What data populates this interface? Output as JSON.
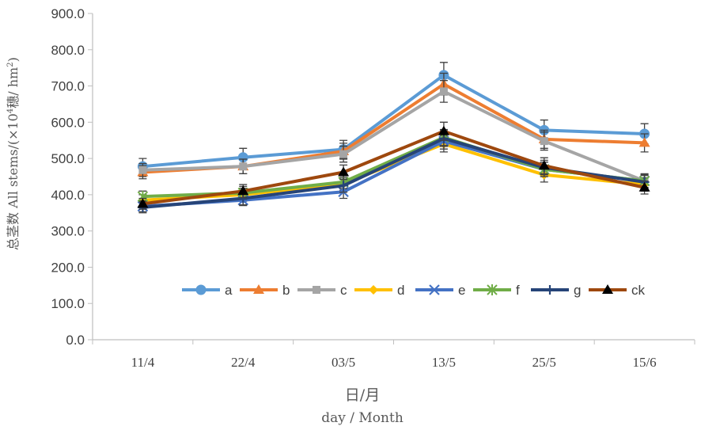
{
  "chart_data": {
    "type": "line",
    "categories": [
      "11/4",
      "22/4",
      "03/5",
      "13/5",
      "25/5",
      "15/6"
    ],
    "ylim": [
      0,
      900
    ],
    "yticks": [
      "0.0",
      "100.0",
      "200.0",
      "300.0",
      "400.0",
      "500.0",
      "600.0",
      "700.0",
      "800.0",
      "900.0"
    ],
    "ylabel": "总茎数 All stems/(×10⁴穗/hm²)",
    "ylabel_parts": {
      "cn": "总茎数",
      "en": " All stems/(×10",
      "sup1": "4",
      "mid": "穗/ hm",
      "sup2": "2",
      "end": ")"
    },
    "xlabel_cn": "日/月",
    "xlabel_en": "day  /  Month",
    "grid": false,
    "legend_position": "inside-lower-right",
    "series": [
      {
        "name": "a",
        "color": "#5B9BD5",
        "marker": "circle",
        "values": [
          478,
          503,
          525,
          730,
          578,
          568
        ],
        "errors": [
          22,
          25,
          25,
          35,
          28,
          28
        ]
      },
      {
        "name": "b",
        "color": "#ED7D31",
        "marker": "triangle",
        "values": [
          462,
          478,
          520,
          705,
          553,
          543
        ],
        "errors": [
          18,
          20,
          22,
          30,
          25,
          25
        ]
      },
      {
        "name": "c",
        "color": "#A5A5A5",
        "marker": "square",
        "values": [
          468,
          478,
          512,
          685,
          548,
          438
        ],
        "errors": [
          18,
          20,
          22,
          30,
          25,
          20
        ]
      },
      {
        "name": "d",
        "color": "#FFC000",
        "marker": "diamond",
        "values": [
          385,
          400,
          430,
          540,
          455,
          428
        ],
        "errors": [
          15,
          18,
          18,
          22,
          20,
          18
        ]
      },
      {
        "name": "e",
        "color": "#4472C4",
        "marker": "x",
        "values": [
          368,
          385,
          408,
          548,
          470,
          438
        ],
        "errors": [
          15,
          15,
          18,
          22,
          20,
          18
        ]
      },
      {
        "name": "f",
        "color": "#70AD47",
        "marker": "star",
        "values": [
          395,
          405,
          435,
          558,
          470,
          438
        ],
        "errors": [
          15,
          18,
          18,
          22,
          20,
          18
        ]
      },
      {
        "name": "g",
        "color": "#264478",
        "marker": "plus",
        "values": [
          365,
          390,
          425,
          555,
          475,
          435
        ],
        "errors": [
          15,
          18,
          18,
          22,
          20,
          18
        ]
      },
      {
        "name": "ck",
        "color": "#9E480E",
        "marker": "triangle-black",
        "values": [
          375,
          410,
          462,
          575,
          480,
          420
        ],
        "errors": [
          15,
          18,
          20,
          25,
          22,
          18
        ]
      }
    ]
  }
}
